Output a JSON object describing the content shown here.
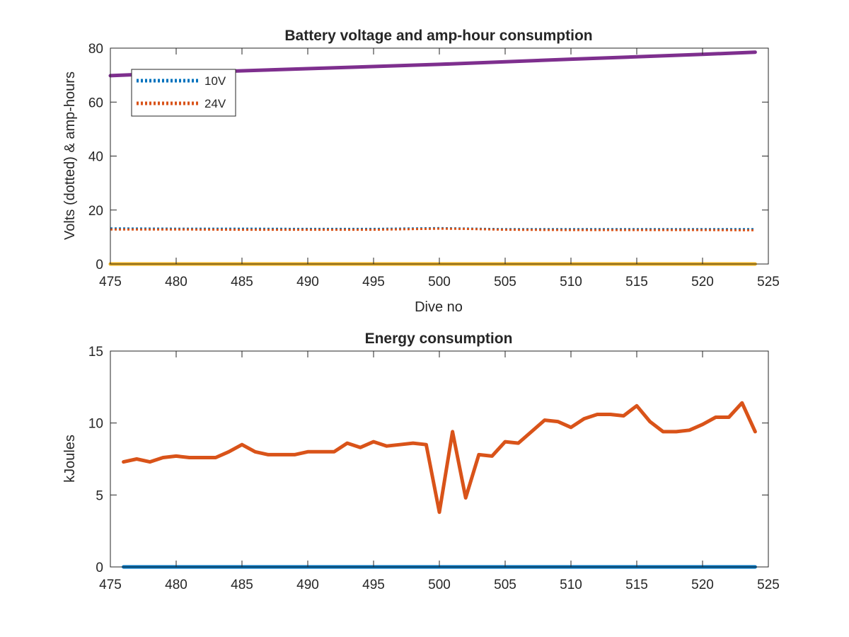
{
  "chart_data": [
    {
      "type": "line",
      "title": "Battery voltage and amp-hour consumption",
      "xlabel": "Dive no",
      "ylabel": "Volts (dotted) & amp-hours",
      "xlim": [
        475,
        525
      ],
      "ylim": [
        0,
        80
      ],
      "xticks": [
        "475",
        "480",
        "485",
        "490",
        "495",
        "500",
        "505",
        "510",
        "515",
        "520",
        "525"
      ],
      "yticks": [
        "0",
        "20",
        "40",
        "60",
        "80"
      ],
      "legend_position": "top-left",
      "grid": false,
      "series": [
        {
          "name": "10V",
          "style": "dotted",
          "color": "#0072BD",
          "x": [
            475,
            480,
            485,
            490,
            495,
            500,
            505,
            510,
            515,
            520,
            524
          ],
          "y": [
            13.2,
            13.1,
            13.1,
            13.0,
            13.0,
            13.3,
            12.9,
            12.9,
            12.9,
            12.9,
            12.9
          ]
        },
        {
          "name": "24V",
          "style": "dotted",
          "color": "#D95319",
          "x": [
            475,
            480,
            485,
            490,
            495,
            500,
            502,
            505,
            510,
            515,
            520,
            524
          ],
          "y": [
            12.8,
            12.8,
            12.7,
            12.7,
            12.7,
            13.1,
            13.0,
            12.7,
            12.6,
            12.6,
            12.6,
            12.5
          ]
        },
        {
          "style": "solid",
          "color": "#7E2F8E",
          "x": [
            475,
            480,
            490,
            500,
            510,
            520,
            524
          ],
          "y": [
            69.8,
            70.8,
            72.4,
            74.0,
            75.9,
            77.7,
            78.5
          ]
        },
        {
          "style": "solid",
          "color": "#EDB120",
          "x": [
            475,
            524
          ],
          "y": [
            0,
            0
          ]
        }
      ]
    },
    {
      "type": "line",
      "title": "Energy consumption",
      "xlabel": "",
      "ylabel": "kJoules",
      "xlim": [
        475,
        525
      ],
      "ylim": [
        0,
        15
      ],
      "xticks": [
        "475",
        "480",
        "485",
        "490",
        "495",
        "500",
        "505",
        "510",
        "515",
        "520",
        "525"
      ],
      "yticks": [
        "0",
        "5",
        "10",
        "15"
      ],
      "grid": false,
      "series": [
        {
          "style": "solid",
          "color": "#D95319",
          "x": [
            476,
            477,
            478,
            479,
            480,
            481,
            482,
            483,
            484,
            485,
            486,
            487,
            488,
            489,
            490,
            491,
            492,
            493,
            494,
            495,
            496,
            497,
            498,
            499,
            500,
            501,
            502,
            503,
            504,
            505,
            506,
            507,
            508,
            509,
            510,
            511,
            512,
            513,
            514,
            515,
            516,
            517,
            518,
            519,
            520,
            521,
            522,
            523,
            524
          ],
          "y": [
            7.3,
            7.5,
            7.3,
            7.6,
            7.7,
            7.6,
            7.6,
            7.6,
            8.0,
            8.5,
            8.0,
            7.8,
            7.8,
            7.8,
            8.0,
            8.0,
            8.0,
            8.6,
            8.3,
            8.7,
            8.4,
            8.5,
            8.6,
            8.5,
            3.8,
            9.4,
            4.8,
            7.8,
            7.7,
            8.7,
            8.6,
            9.4,
            10.2,
            10.1,
            9.7,
            10.3,
            10.6,
            10.6,
            10.5,
            11.2,
            10.1,
            9.4,
            9.4,
            9.5,
            9.9,
            10.4,
            10.4,
            11.4,
            9.4
          ]
        },
        {
          "style": "solid",
          "color": "#0072BD",
          "x": [
            476,
            524
          ],
          "y": [
            0,
            0
          ]
        }
      ]
    }
  ]
}
